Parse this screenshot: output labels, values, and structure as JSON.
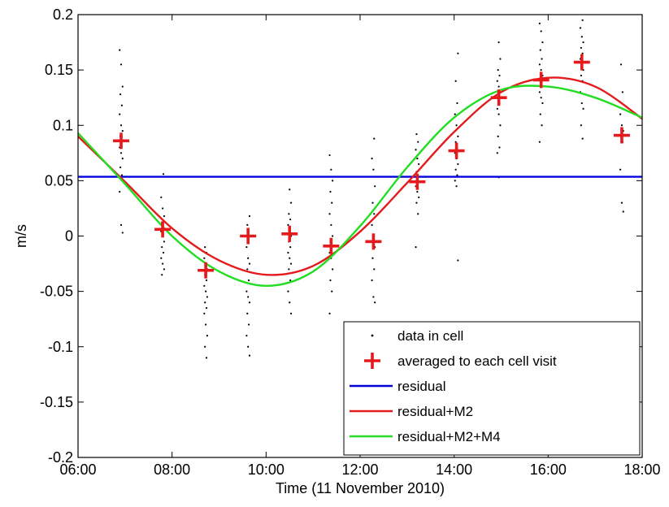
{
  "chart_data": {
    "type": "line",
    "xlabel": "Time (11 November 2010)",
    "ylabel": "m/s",
    "xlim": [
      "06:00",
      "18:00"
    ],
    "ylim": [
      -0.2,
      0.2
    ],
    "x_ticks": [
      "06:00",
      "08:00",
      "10:00",
      "12:00",
      "14:00",
      "16:00",
      "18:00"
    ],
    "y_ticks": [
      "-0.2",
      "-0.15",
      "-0.1",
      "-0.05",
      "0",
      "0.05",
      "0.1",
      "0.15",
      "0.2"
    ],
    "grid": false,
    "legend_position": "bottom-right",
    "series": [
      {
        "name": "data in cell",
        "style": "dots",
        "color": "#000000",
        "groups": [
          {
            "x": "06:55",
            "y": [
              0.168,
              0.155,
              0.135,
              0.128,
              0.118,
              0.11,
              0.1,
              0.095,
              0.09,
              0.085,
              0.08,
              0.075,
              0.07,
              0.062,
              0.055,
              0.04,
              0.01,
              0.003
            ]
          },
          {
            "x": "07:48",
            "y": [
              0.056,
              0.035,
              0.025,
              0.018,
              0.012,
              0.008,
              0.004,
              0.0,
              -0.005,
              -0.01,
              -0.015,
              -0.02,
              -0.025,
              -0.03,
              -0.035
            ]
          },
          {
            "x": "08:43",
            "y": [
              -0.01,
              -0.015,
              -0.02,
              -0.025,
              -0.03,
              -0.035,
              -0.04,
              -0.045,
              -0.05,
              -0.055,
              -0.06,
              -0.065,
              -0.07,
              -0.08,
              -0.09,
              -0.1,
              -0.11
            ]
          },
          {
            "x": "09:37",
            "y": [
              0.018,
              0.01,
              0.0,
              -0.01,
              -0.02,
              -0.025,
              -0.03,
              -0.04,
              -0.05,
              -0.055,
              -0.06,
              -0.07,
              -0.08,
              -0.09,
              -0.1,
              -0.108
            ]
          },
          {
            "x": "10:30",
            "y": [
              0.042,
              0.03,
              0.02,
              0.015,
              0.01,
              0.005,
              0.0,
              -0.005,
              -0.01,
              -0.015,
              -0.02,
              -0.025,
              -0.03,
              -0.04,
              -0.05,
              -0.06,
              -0.07
            ]
          },
          {
            "x": "11:23",
            "y": [
              0.073,
              0.06,
              0.05,
              0.04,
              0.03,
              0.02,
              0.01,
              0.0,
              -0.005,
              -0.01,
              -0.015,
              -0.02,
              -0.03,
              -0.04,
              -0.05,
              -0.07
            ]
          },
          {
            "x": "12:17",
            "y": [
              0.088,
              0.07,
              0.06,
              0.045,
              0.03,
              0.02,
              0.01,
              0.0,
              -0.01,
              -0.02,
              -0.03,
              -0.04,
              -0.055,
              -0.06
            ]
          },
          {
            "x": "13:13",
            "y": [
              0.092,
              0.085,
              0.078,
              0.07,
              0.065,
              0.058,
              0.05,
              0.045,
              0.04,
              0.035,
              0.03,
              0.02,
              -0.01
            ]
          },
          {
            "x": "14:03",
            "y": [
              0.165,
              0.14,
              0.12,
              0.11,
              0.1,
              0.09,
              0.085,
              0.08,
              0.075,
              0.07,
              0.065,
              0.06,
              0.055,
              0.05,
              0.045,
              -0.022
            ]
          },
          {
            "x": "14:57",
            "y": [
              0.175,
              0.16,
              0.15,
              0.145,
              0.14,
              0.135,
              0.13,
              0.125,
              0.12,
              0.115,
              0.11,
              0.1,
              0.09,
              0.08,
              0.075,
              0.053
            ]
          },
          {
            "x": "15:51",
            "y": [
              0.192,
              0.185,
              0.175,
              0.168,
              0.16,
              0.155,
              0.15,
              0.145,
              0.14,
              0.135,
              0.13,
              0.125,
              0.12,
              0.11,
              0.1,
              0.085
            ]
          },
          {
            "x": "16:43",
            "y": [
              0.195,
              0.188,
              0.18,
              0.175,
              0.17,
              0.165,
              0.16,
              0.155,
              0.15,
              0.145,
              0.14,
              0.13,
              0.12,
              0.115,
              0.1,
              0.088
            ]
          },
          {
            "x": "17:34",
            "y": [
              0.155,
              0.13,
              0.11,
              0.1,
              0.095,
              0.09,
              0.085,
              0.06,
              0.03,
              0.022
            ]
          }
        ]
      },
      {
        "name": "averaged to each cell visit",
        "style": "plus",
        "color": "#e41a1c",
        "points": [
          {
            "x": "06:55",
            "y": 0.086
          },
          {
            "x": "07:48",
            "y": 0.006
          },
          {
            "x": "08:43",
            "y": -0.031
          },
          {
            "x": "09:37",
            "y": 0.0
          },
          {
            "x": "10:30",
            "y": 0.002
          },
          {
            "x": "11:23",
            "y": -0.009
          },
          {
            "x": "12:17",
            "y": -0.005
          },
          {
            "x": "13:13",
            "y": 0.049
          },
          {
            "x": "14:03",
            "y": 0.077
          },
          {
            "x": "14:57",
            "y": 0.125
          },
          {
            "x": "15:51",
            "y": 0.141
          },
          {
            "x": "16:43",
            "y": 0.157
          },
          {
            "x": "17:34",
            "y": 0.091
          }
        ]
      },
      {
        "name": "residual",
        "style": "line",
        "color": "#0000dd",
        "points": [
          {
            "x": "06:00",
            "y": 0.0535
          },
          {
            "x": "18:00",
            "y": 0.0535
          }
        ]
      },
      {
        "name": "residual+M2",
        "style": "line",
        "color": "#e41a1c",
        "points": [
          {
            "x": "06:00",
            "y": 0.09
          },
          {
            "x": "07:00",
            "y": 0.049
          },
          {
            "x": "08:00",
            "y": 0.007
          },
          {
            "x": "09:00",
            "y": -0.022
          },
          {
            "x": "10:00",
            "y": -0.035
          },
          {
            "x": "11:00",
            "y": -0.027
          },
          {
            "x": "12:00",
            "y": 0.004
          },
          {
            "x": "13:00",
            "y": 0.048
          },
          {
            "x": "14:00",
            "y": 0.094
          },
          {
            "x": "15:00",
            "y": 0.13
          },
          {
            "x": "16:00",
            "y": 0.143
          },
          {
            "x": "17:00",
            "y": 0.135
          },
          {
            "x": "18:00",
            "y": 0.106
          }
        ]
      },
      {
        "name": "residual+M2+M4",
        "style": "line",
        "color": "#22dd22",
        "points": [
          {
            "x": "06:00",
            "y": 0.093
          },
          {
            "x": "07:00",
            "y": 0.047
          },
          {
            "x": "08:00",
            "y": 0.0
          },
          {
            "x": "09:00",
            "y": -0.032
          },
          {
            "x": "10:00",
            "y": -0.045
          },
          {
            "x": "11:00",
            "y": -0.032
          },
          {
            "x": "12:00",
            "y": 0.009
          },
          {
            "x": "13:00",
            "y": 0.062
          },
          {
            "x": "14:00",
            "y": 0.107
          },
          {
            "x": "15:00",
            "y": 0.132
          },
          {
            "x": "16:00",
            "y": 0.135
          },
          {
            "x": "17:00",
            "y": 0.125
          },
          {
            "x": "18:00",
            "y": 0.107
          }
        ]
      }
    ]
  }
}
